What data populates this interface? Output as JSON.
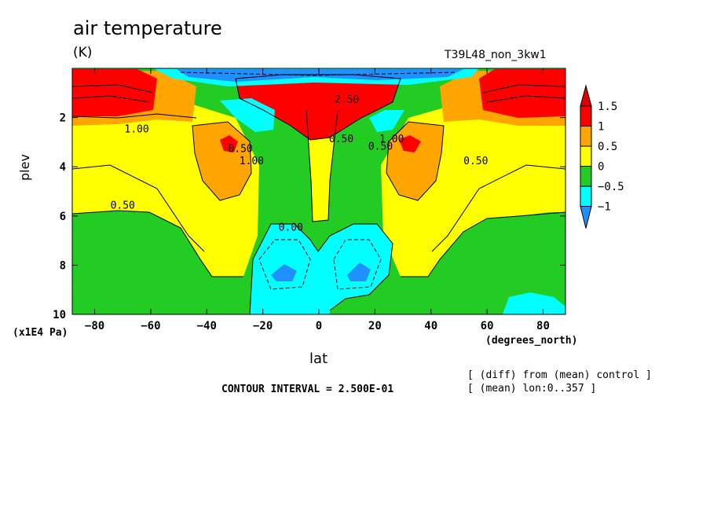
{
  "chart_data": {
    "type": "heatmap",
    "title": "air temperature",
    "units": "(K)",
    "run_label": "T39L48_non_3kw1",
    "xlabel": "lat",
    "ylabel": "plev",
    "x_unit": "(degrees_north)",
    "y_unit": "(x1E4 Pa)",
    "xlim": [
      -88,
      88
    ],
    "ylim": [
      10,
      0
    ],
    "x_ticks": [
      -80,
      -60,
      -40,
      -20,
      0,
      20,
      40,
      60,
      80
    ],
    "y_ticks": [
      2,
      4,
      6,
      8,
      10
    ],
    "contour_interval_text": "CONTOUR INTERVAL = 2.500E-01",
    "notes": [
      "[ (diff) from (mean) control ]",
      "[ (mean) lon:0..357 ]"
    ],
    "colorbar": {
      "labels": [
        "1.5",
        "1",
        "0.5",
        "0",
        "−0.5",
        "−1"
      ],
      "levels": [
        -1,
        -0.5,
        0,
        0.5,
        1,
        1.5
      ],
      "colors": [
        "#1e90ff",
        "#00ffff",
        "#22cc22",
        "#ffff00",
        "#ffa500",
        "#ff0000",
        "#dd0000"
      ]
    },
    "contour_labels": [
      {
        "text": "1.00",
        "lat": -65,
        "plev": 2.6
      },
      {
        "text": "0.50",
        "lat": -70,
        "plev": 5.7
      },
      {
        "text": "0.50",
        "lat": -28,
        "plev": 3.4
      },
      {
        "text": "1.00",
        "lat": -24,
        "plev": 3.9
      },
      {
        "text": "0.00",
        "lat": -10,
        "plev": 6.6
      },
      {
        "text": "2.50",
        "lat": 10,
        "plev": 1.4
      },
      {
        "text": "0.50",
        "lat": 8,
        "plev": 3.0
      },
      {
        "text": "0.50",
        "lat": 22,
        "plev": 3.3
      },
      {
        "text": "1.00",
        "lat": 26,
        "plev": 3.0
      },
      {
        "text": "0.50",
        "lat": 56,
        "plev": 3.9
      }
    ]
  }
}
